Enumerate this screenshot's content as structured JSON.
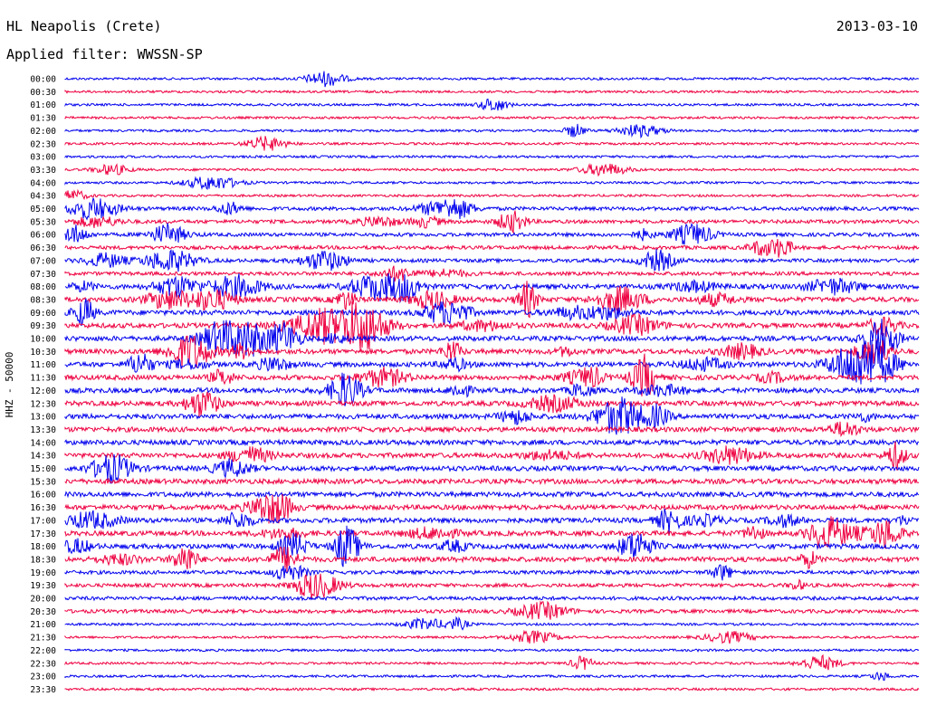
{
  "header": {
    "station": "HL Neapolis (Crete)",
    "date": "2013-03-10",
    "filter_label": "Applied filter: WWSSN-SP"
  },
  "chart_data": {
    "type": "line",
    "title": "HL Neapolis (Crete)",
    "subtitle": "Applied filter: WWSSN-SP",
    "ylabel": "HHZ - 50000",
    "xlabel": "",
    "grid": false,
    "legend": "none",
    "colors": [
      "#0000ee",
      "#ee0040"
    ],
    "row_labels": [
      "00:00",
      "00:30",
      "01:00",
      "01:30",
      "02:00",
      "02:30",
      "03:00",
      "03:30",
      "04:00",
      "04:30",
      "05:00",
      "05:30",
      "06:00",
      "06:30",
      "07:00",
      "07:30",
      "08:00",
      "08:30",
      "09:00",
      "09:30",
      "10:00",
      "10:30",
      "11:00",
      "11:30",
      "12:00",
      "12:30",
      "13:00",
      "13:30",
      "14:00",
      "14:30",
      "15:00",
      "15:30",
      "16:00",
      "16:30",
      "17:00",
      "17:30",
      "18:00",
      "18:30",
      "19:00",
      "19:30",
      "20:00",
      "20:30",
      "21:00",
      "21:30",
      "22:00",
      "22:30",
      "23:00",
      "23:30"
    ],
    "noise_level": [
      1,
      1,
      1,
      1,
      1,
      1,
      1,
      1,
      1,
      1,
      2,
      2,
      2,
      2,
      2,
      2,
      3,
      3,
      3,
      3,
      3,
      3,
      3,
      3,
      3,
      3,
      3,
      3,
      3,
      3,
      3,
      3,
      3,
      3,
      3,
      3,
      3,
      3,
      2,
      2,
      2,
      2,
      1,
      1,
      1,
      1,
      1,
      1
    ]
  }
}
